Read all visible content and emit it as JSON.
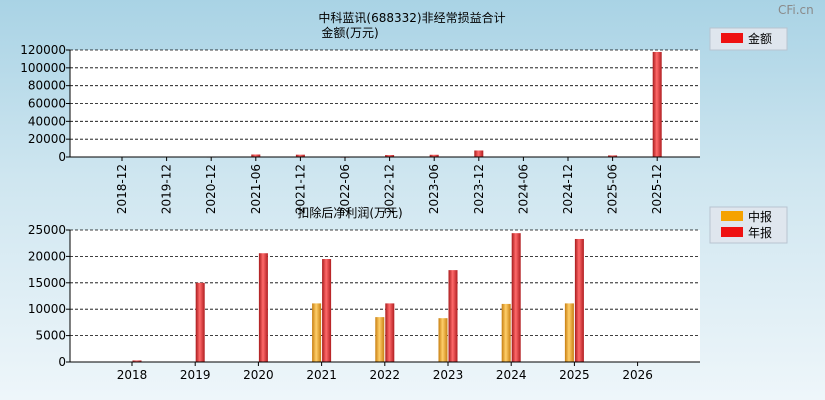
{
  "watermark": "CFi.cn",
  "colors": {
    "annual": "#e8282b",
    "interim": "#f0a020"
  },
  "chart_data": [
    {
      "type": "bar",
      "title": "中科蓝讯(688332)非经常损益合计",
      "subtitle": "金额(万元)",
      "categories": [
        "2018-12",
        "2019-12",
        "2020-12",
        "2021-06",
        "2021-12",
        "2022-06",
        "2022-12",
        "2023-06",
        "2023-12",
        "2024-06",
        "2024-12",
        "2025-06",
        "2025-12"
      ],
      "series": [
        {
          "name": "金额",
          "values": [
            0,
            400,
            300,
            2800,
            2600,
            200,
            2200,
            2500,
            7300,
            0,
            0,
            1800,
            117800
          ]
        }
      ],
      "ylim": [
        0,
        120000
      ],
      "yticks": [
        "0",
        "20000",
        "40000",
        "60000",
        "80000",
        "100000",
        "120000"
      ],
      "grid": true,
      "legend": "top-right"
    },
    {
      "type": "bar",
      "title": "扣除后净利润(万元)",
      "categories": [
        "2018",
        "2019",
        "2020",
        "2021",
        "2022",
        "2023",
        "2024",
        "2025",
        "2026"
      ],
      "series": [
        {
          "name": "中报",
          "values": [
            null,
            null,
            null,
            11100,
            8500,
            8300,
            11000,
            11100,
            null
          ]
        },
        {
          "name": "年报",
          "values": [
            300,
            15000,
            20600,
            19500,
            11100,
            17400,
            24400,
            23300,
            null
          ]
        }
      ],
      "ylim": [
        0,
        25000
      ],
      "yticks": [
        "0",
        "5000",
        "10000",
        "15000",
        "20000",
        "25000"
      ],
      "grid": true,
      "legend": "top-right"
    }
  ]
}
